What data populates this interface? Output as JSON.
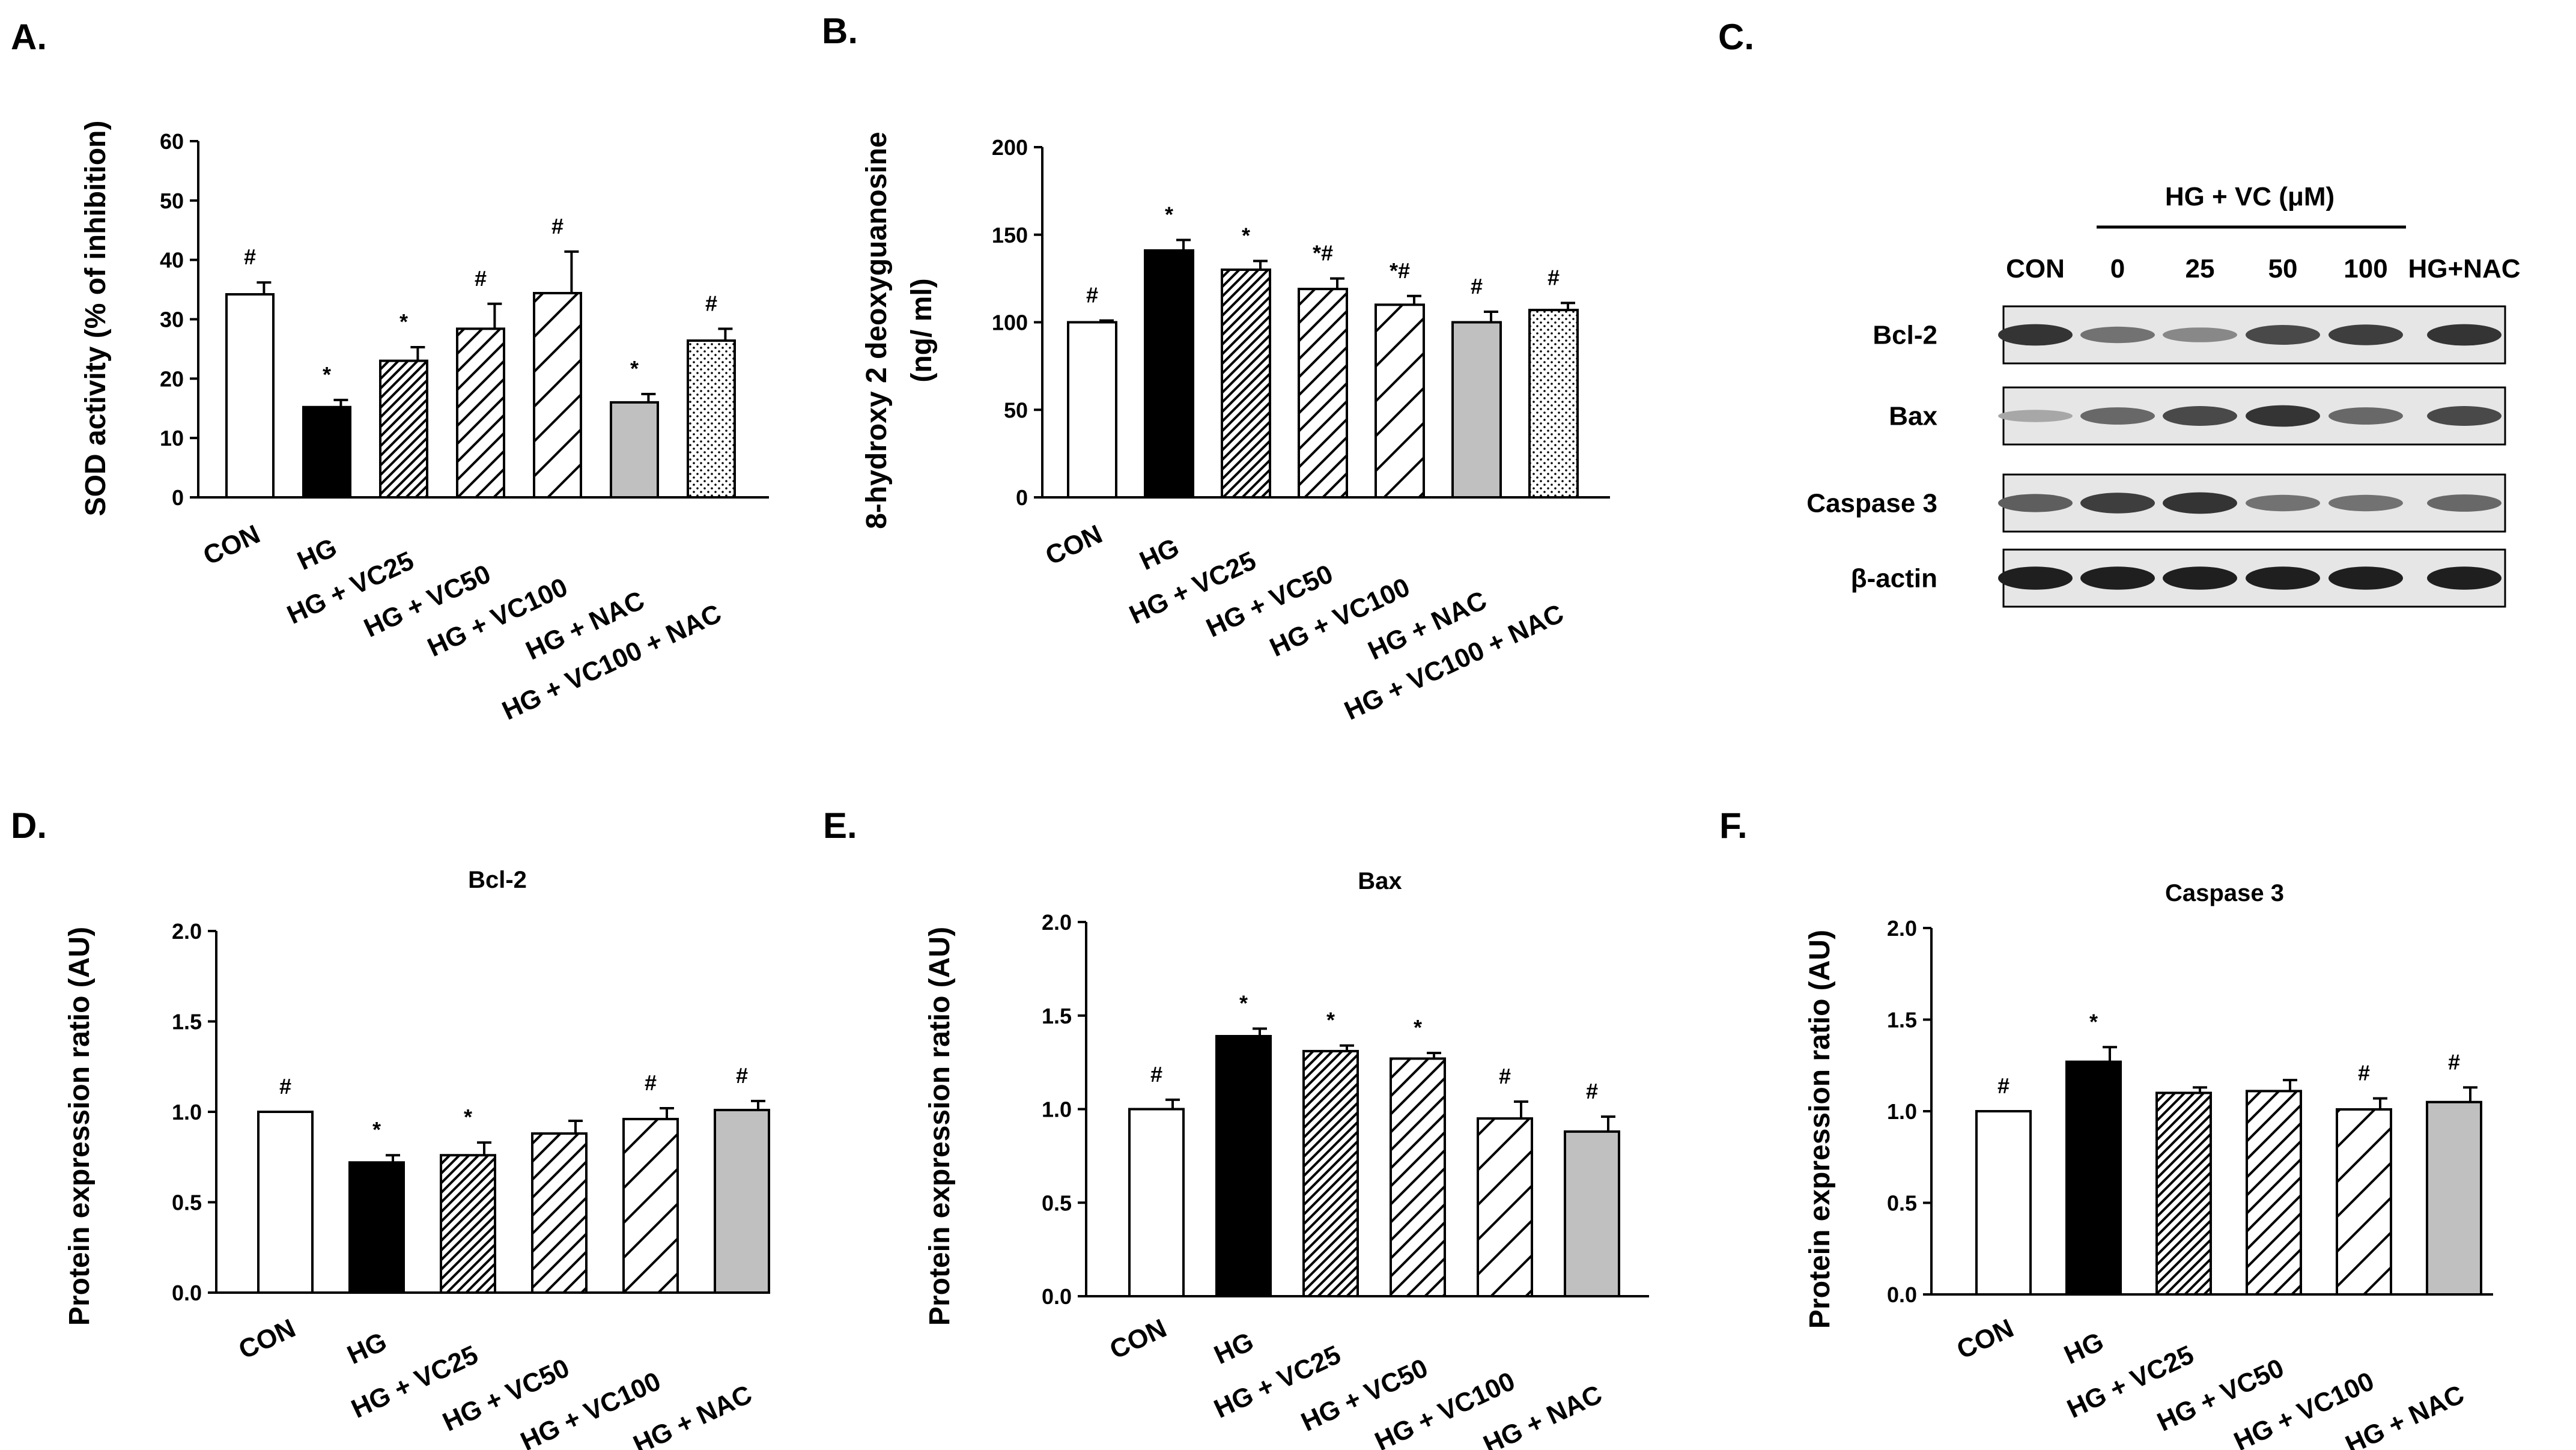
{
  "chart_data": [
    {
      "panel": "A.",
      "type": "bar",
      "title": "",
      "ylabel": "SOD activity (% of inhibition)",
      "ylim": [
        0,
        60
      ],
      "yticks": [
        "0",
        "10",
        "20",
        "30",
        "40",
        "50",
        "60"
      ],
      "categories": [
        "CON",
        "HG",
        "HG + VC25",
        "HG + VC50",
        "HG + VC100",
        "HG + NAC",
        "HG + VC100 + NAC"
      ],
      "values": [
        34.2,
        15.2,
        23.0,
        28.4,
        34.4,
        16.0,
        26.4
      ],
      "errors": [
        2.0,
        1.2,
        2.3,
        4.2,
        7.0,
        1.4,
        2.0
      ],
      "signif": [
        "#",
        "*",
        "*",
        "#",
        "#",
        "*",
        "#"
      ],
      "fills": [
        "white",
        "black",
        "dense-hatch",
        "hatch",
        "wide-hatch",
        "gray",
        "dots"
      ]
    },
    {
      "panel": "B.",
      "type": "bar",
      "title": "",
      "ylabel": "8-hydroxy 2 deoxyguanosine",
      "ylabel2": "(ng/ ml)",
      "ylim": [
        0,
        200
      ],
      "yticks": [
        "0",
        "50",
        "100",
        "150",
        "200"
      ],
      "categories": [
        "CON",
        "HG",
        "HG + VC25",
        "HG + VC50",
        "HG + VC100",
        "HG + NAC",
        "HG + VC100 + NAC"
      ],
      "values": [
        100,
        141,
        130,
        119,
        110,
        100,
        107
      ],
      "errors": [
        1,
        6,
        5,
        6,
        5,
        6,
        4
      ],
      "signif": [
        "#",
        "*",
        "*",
        "*#",
        "*#",
        "#",
        "#"
      ],
      "fills": [
        "white",
        "black",
        "dense-hatch",
        "hatch",
        "wide-hatch",
        "gray",
        "dots"
      ]
    },
    {
      "panel": "D.",
      "type": "bar",
      "title": "Bcl-2",
      "ylabel": "Protein expression ratio (AU)",
      "ylim": [
        0,
        2.0
      ],
      "yticks": [
        "0.0",
        "0.5",
        "1.0",
        "1.5",
        "2.0"
      ],
      "categories": [
        "CON",
        "HG",
        "HG + VC25",
        "HG + VC50",
        "HG + VC100",
        "HG + NAC"
      ],
      "values": [
        1.0,
        0.72,
        0.76,
        0.88,
        0.96,
        1.01
      ],
      "errors": [
        0.0,
        0.04,
        0.07,
        0.07,
        0.06,
        0.05
      ],
      "signif": [
        "#",
        "*",
        "*",
        "",
        "#",
        "#"
      ],
      "fills": [
        "white",
        "black",
        "dense-hatch",
        "hatch",
        "wide-hatch",
        "gray"
      ]
    },
    {
      "panel": "E.",
      "type": "bar",
      "title": "Bax",
      "ylabel": "Protein expression ratio (AU)",
      "ylim": [
        0,
        2.0
      ],
      "yticks": [
        "0.0",
        "0.5",
        "1.0",
        "1.5",
        "2.0"
      ],
      "categories": [
        "CON",
        "HG",
        "HG + VC25",
        "HG + VC50",
        "HG + VC100",
        "HG + NAC"
      ],
      "values": [
        1.0,
        1.39,
        1.31,
        1.27,
        0.95,
        0.88
      ],
      "errors": [
        0.05,
        0.04,
        0.03,
        0.03,
        0.09,
        0.08
      ],
      "signif": [
        "#",
        "*",
        "*",
        "*",
        "#",
        "#"
      ],
      "fills": [
        "white",
        "black",
        "dense-hatch",
        "hatch",
        "wide-hatch",
        "gray"
      ]
    },
    {
      "panel": "F.",
      "type": "bar",
      "title": "Caspase 3",
      "ylabel": "Protein expression ratio (AU)",
      "ylim": [
        0,
        2.0
      ],
      "yticks": [
        "0.0",
        "0.5",
        "1.0",
        "1.5",
        "2.0"
      ],
      "categories": [
        "CON",
        "HG",
        "HG + VC25",
        "HG + VC50",
        "HG + VC100",
        "HG + NAC"
      ],
      "values": [
        1.0,
        1.27,
        1.1,
        1.11,
        1.01,
        1.05
      ],
      "errors": [
        0.0,
        0.08,
        0.03,
        0.06,
        0.06,
        0.08
      ],
      "signif": [
        "#",
        "*",
        "",
        "",
        "#",
        "#"
      ],
      "fills": [
        "white",
        "black",
        "dense-hatch",
        "hatch",
        "wide-hatch",
        "gray"
      ]
    }
  ],
  "blot": {
    "panel": "C.",
    "group_label": "HG + VC (μM)",
    "lanes": [
      "CON",
      "0",
      "25",
      "50",
      "100",
      "HG+NAC"
    ],
    "rows": [
      {
        "name": "Bcl-2",
        "intensities": [
          0.85,
          0.55,
          0.45,
          0.75,
          0.8,
          0.85
        ]
      },
      {
        "name": "Bax",
        "intensities": [
          0.3,
          0.6,
          0.75,
          0.85,
          0.6,
          0.75
        ]
      },
      {
        "name": "Caspase 3",
        "intensities": [
          0.65,
          0.8,
          0.85,
          0.55,
          0.55,
          0.6
        ]
      },
      {
        "name": "β-actin",
        "intensities": [
          0.95,
          0.95,
          0.95,
          0.95,
          0.95,
          0.95
        ]
      }
    ]
  }
}
